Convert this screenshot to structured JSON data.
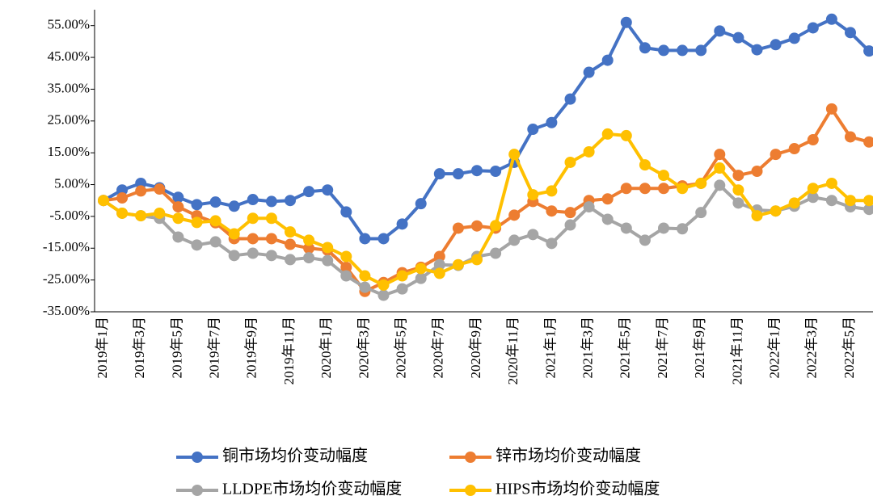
{
  "chart_data": {
    "type": "line",
    "categories": [
      "2019年1月",
      null,
      "2019年3月",
      null,
      "2019年5月",
      null,
      "2019年7月",
      null,
      "2019年9月",
      null,
      "2019年11月",
      null,
      "2020年1月",
      null,
      "2020年3月",
      null,
      "2020年5月",
      null,
      "2020年7月",
      null,
      "2020年9月",
      null,
      "2020年11月",
      null,
      "2021年1月",
      null,
      "2021年3月",
      null,
      "2021年5月",
      null,
      "2021年7月",
      null,
      "2021年9月",
      null,
      "2021年11月",
      null,
      "2022年1月",
      null,
      "2022年3月",
      null,
      "2022年5月",
      null
    ],
    "series": [
      {
        "name": "铜市场均价变动幅度",
        "color": "#4472c4",
        "values": [
          0,
          3.3,
          5.4,
          4,
          1,
          -1.3,
          -0.5,
          -1.8,
          0.3,
          -0.3,
          0,
          2.8,
          3.3,
          -3.6,
          -12,
          -12,
          -7.4,
          -1,
          8.4,
          8.4,
          9.4,
          9.2,
          12,
          22.4,
          24.5,
          31.9,
          40.3,
          44.1,
          56,
          48,
          47.2,
          47.2,
          47.2,
          53.3,
          51.2,
          47.4,
          49,
          51,
          54.3,
          57,
          52.8,
          47
        ]
      },
      {
        "name": "锌市场均价变动幅度",
        "color": "#ed7d31",
        "values": [
          0,
          0.8,
          3,
          3.6,
          -2,
          -4.8,
          -7,
          -12,
          -12,
          -12,
          -13.8,
          -15,
          -15.6,
          -21,
          -28.6,
          -25.8,
          -22.7,
          -21,
          -17.6,
          -8.7,
          -8,
          -8.7,
          -4.6,
          -0.3,
          -3.3,
          -3.8,
          0,
          0.5,
          3.8,
          3.8,
          3.8,
          4.6,
          5.4,
          14.5,
          7.9,
          9.2,
          14.5,
          16.3,
          19.1,
          28.8,
          20,
          18.4
        ]
      },
      {
        "name": "LLDPE市场均价变动幅度",
        "color": "#a5a5a5",
        "values": [
          0,
          -4,
          -4.8,
          -5.6,
          -11.5,
          -14,
          -13,
          -17.3,
          -16.6,
          -17.3,
          -18.6,
          -18,
          -18.9,
          -23.7,
          -27.3,
          -29.8,
          -27.8,
          -24.5,
          -20.2,
          -20.4,
          -17.6,
          -16.6,
          -12.5,
          -10.7,
          -13.5,
          -7.7,
          -2,
          -5.9,
          -8.7,
          -12.5,
          -8.7,
          -8.9,
          -3.8,
          4.8,
          -0.8,
          -3,
          -3.3,
          -1.8,
          1,
          0,
          -2,
          -2.8
        ]
      },
      {
        "name": "HIPS市场均价变动幅度",
        "color": "#ffc000",
        "values": [
          0,
          -4,
          -4.8,
          -4,
          -5.6,
          -6.9,
          -6.4,
          -10.5,
          -5.6,
          -5.6,
          -9.9,
          -12.5,
          -14.8,
          -17.6,
          -23.7,
          -26.6,
          -23.7,
          -21.4,
          -22.9,
          -20.2,
          -18.6,
          -7.9,
          14.5,
          1.8,
          3,
          12,
          15.3,
          20.9,
          20.4,
          11.2,
          7.9,
          3.8,
          5.4,
          10.2,
          3.3,
          -4.8,
          -3.3,
          -0.8,
          3.8,
          5.4,
          0,
          0
        ]
      }
    ],
    "ylim": [
      -35,
      60
    ],
    "yticks": [
      {
        "value": -35,
        "label": "-35.00%"
      },
      {
        "value": -25,
        "label": "-25.00%"
      },
      {
        "value": -15,
        "label": "-15.00%"
      },
      {
        "value": -5,
        "label": "-5.00%"
      },
      {
        "value": 5,
        "label": "5.00%"
      },
      {
        "value": 15,
        "label": "15.00%"
      },
      {
        "value": 25,
        "label": "25.00%"
      },
      {
        "value": 35,
        "label": "35.00%"
      },
      {
        "value": 45,
        "label": "45.00%"
      },
      {
        "value": 55,
        "label": "55.00%"
      }
    ],
    "grid": false,
    "legend": "bottom"
  }
}
